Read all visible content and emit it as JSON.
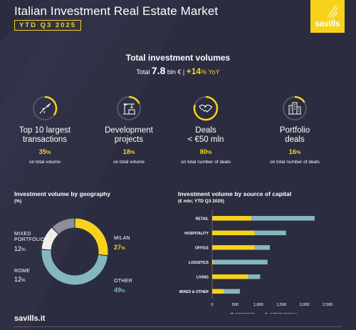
{
  "header": {
    "title": "Italian Investment Real Estate Market",
    "period": "YTD Q3 2025",
    "brand": "savills"
  },
  "total": {
    "title": "Total investment volumes",
    "prefix": "Total",
    "value": "7.8",
    "unit": "bln € |",
    "growth": "+14",
    "growth_unit": "% YoY"
  },
  "kpis": [
    {
      "icon": "rocket-icon",
      "label_line1": "Top 10 largest",
      "label_line2": "transactions",
      "value": "35",
      "unit": "%",
      "note": "on total volume",
      "share": 0.35
    },
    {
      "icon": "crane-icon",
      "label_line1": "Development",
      "label_line2": "projects",
      "value": "18",
      "unit": "%",
      "note": "on total volume",
      "share": 0.18
    },
    {
      "icon": "handshake-icon",
      "label_line1": "Deals",
      "label_line2": "< €50 mln",
      "value": "80",
      "unit": "%",
      "note": "on total number of deals",
      "share": 0.8
    },
    {
      "icon": "buildings-icon",
      "label_line1": "Portfolio",
      "label_line2": "deals",
      "value": "16",
      "unit": "%",
      "note": "on total number of deals",
      "share": 0.16
    }
  ],
  "colors": {
    "background": "#2b2c3f",
    "yellow": "#f7d21c",
    "teal": "#84b7c0",
    "grey": "#8d8e96",
    "light": "#efefe9"
  },
  "footer": {
    "site": "savills.it"
  },
  "chart_data": [
    {
      "type": "pie",
      "title": "Investment volume by geography",
      "subtitle": "(%)",
      "slices": [
        {
          "name": "MILAN",
          "value": 27,
          "unit": "%",
          "color": "#f7d21c"
        },
        {
          "name": "OTHER",
          "value": 49,
          "unit": "%",
          "color": "#84b7c0"
        },
        {
          "name": "ROME",
          "value": 12,
          "unit": "%",
          "color": "#efefe9"
        },
        {
          "name_line1": "MIXED",
          "name_line2": "PORTFOLIO",
          "value": 12,
          "unit": "%",
          "color": "#8d8e96"
        }
      ]
    },
    {
      "type": "bar",
      "orientation": "horizontal",
      "stacked": true,
      "title": "Investment volume by source of capital",
      "subtitle": "(€ mln; YTD Q3 2025)",
      "categories": [
        "RETAIL",
        "HOSPITALITY",
        "OFFICE",
        "LOGISTICS",
        "LIVING",
        "MIXED & OTHER"
      ],
      "series": [
        {
          "name": "DOMESTIC",
          "color": "#f7d21c",
          "values": [
            850,
            920,
            920,
            30,
            780,
            260
          ]
        },
        {
          "name": "INTERNATIONAL",
          "color": "#84b7c0",
          "values": [
            1370,
            680,
            330,
            1170,
            260,
            340
          ]
        }
      ],
      "x_ticks": [
        "0",
        "500",
        "1,000",
        "1,500",
        "2,000",
        "2,500"
      ],
      "xlim": [
        0,
        2500
      ],
      "legend": "bottom"
    }
  ]
}
